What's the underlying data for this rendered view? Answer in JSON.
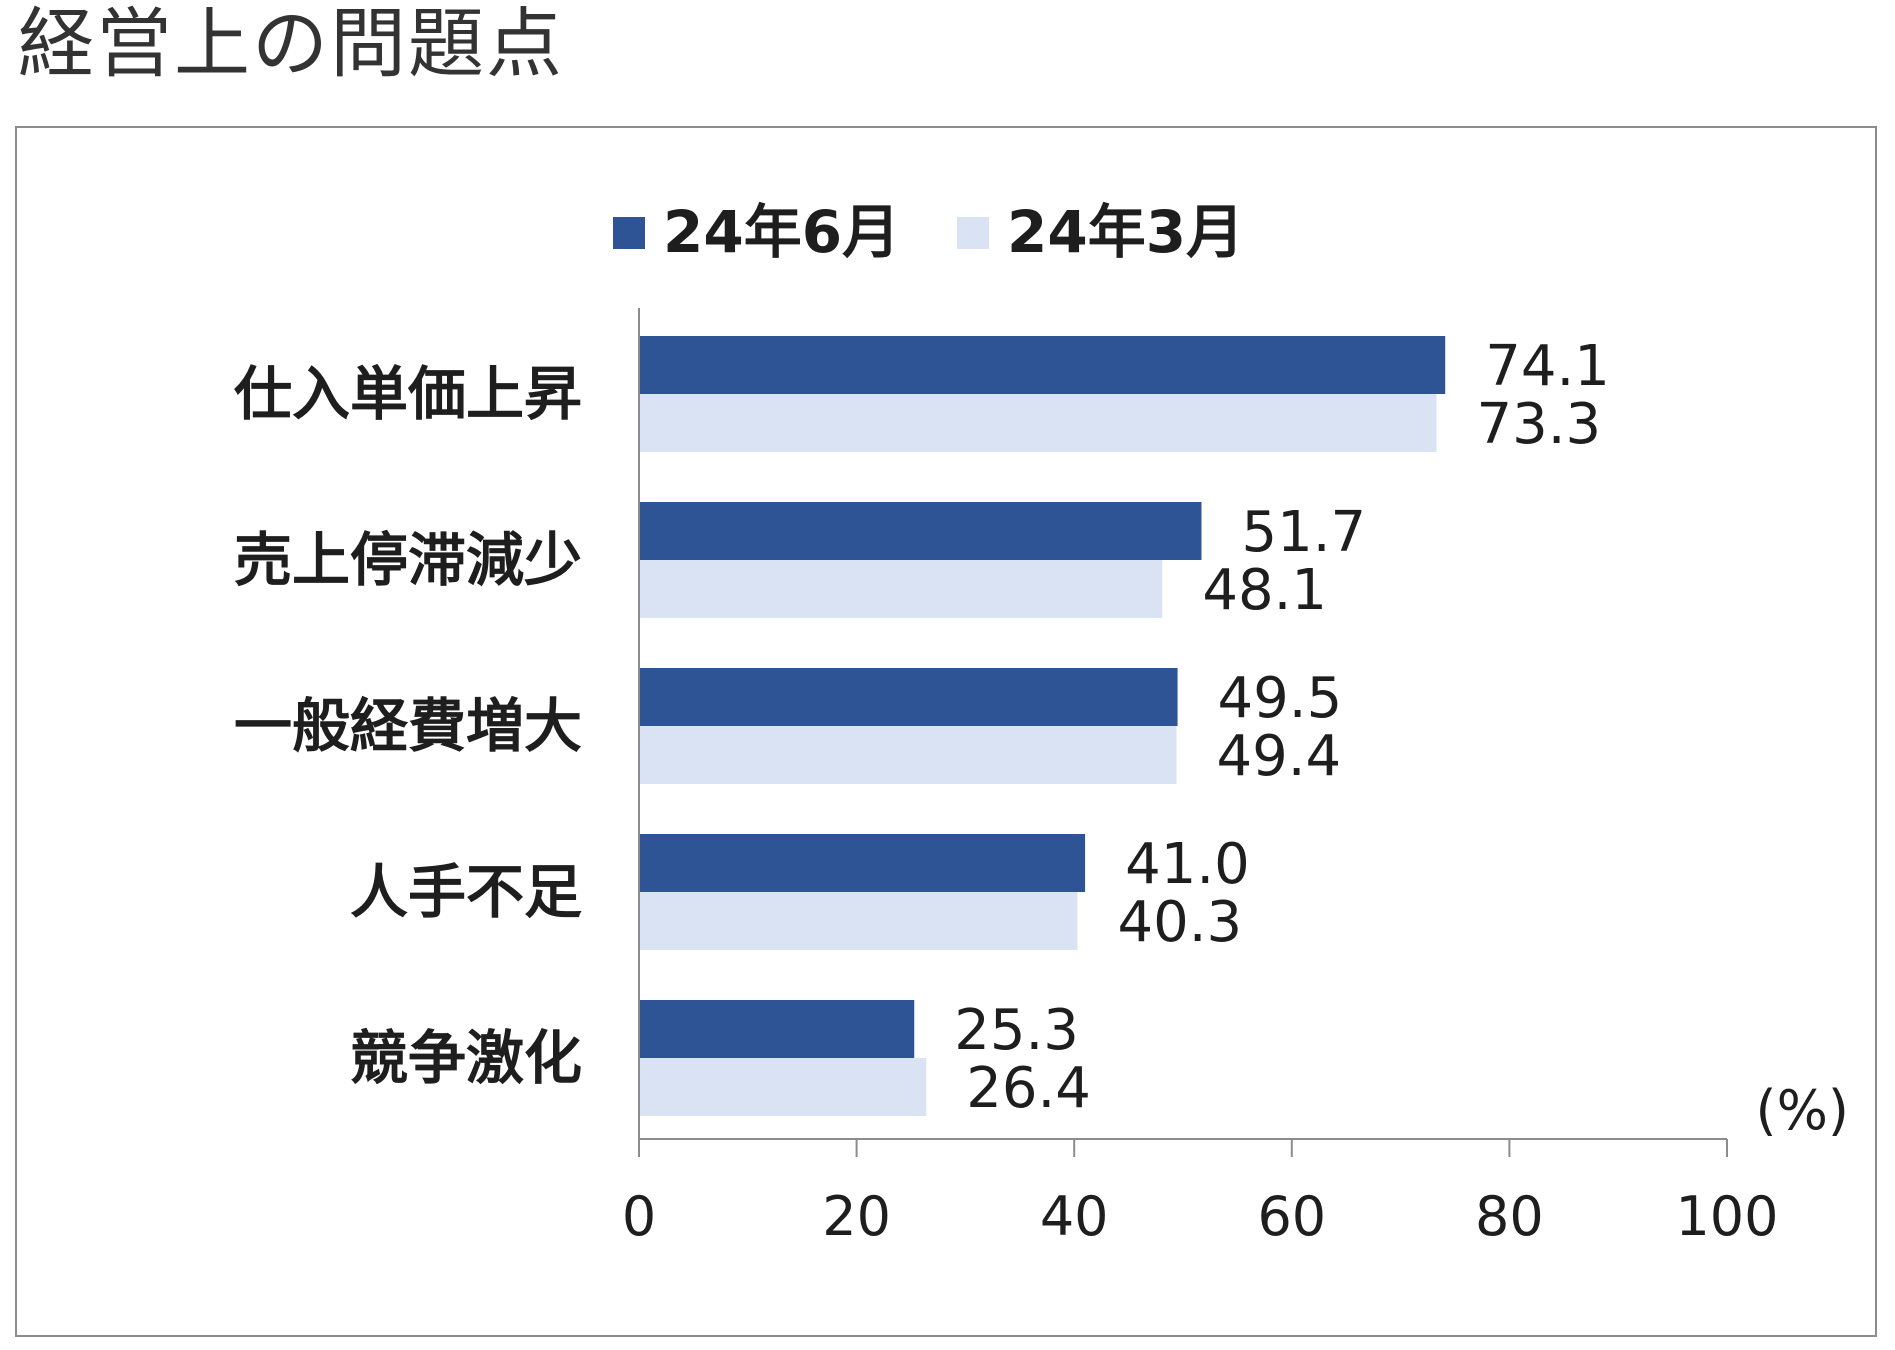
{
  "title": "経営上の問題点",
  "chart_data": {
    "type": "bar",
    "orientation": "horizontal",
    "categories": [
      "仕入単価上昇",
      "売上停滞減少",
      "一般経費増大",
      "人手不足",
      "競争激化"
    ],
    "series": [
      {
        "name": "24年6月",
        "color": "#2f5496",
        "values": [
          74.1,
          51.7,
          49.5,
          41.0,
          25.3
        ],
        "labels": [
          "74.1",
          "51.7",
          "49.5",
          "41.0",
          "25.3"
        ]
      },
      {
        "name": "24年3月",
        "color": "#dae3f3",
        "values": [
          73.3,
          48.1,
          49.4,
          40.3,
          26.4
        ],
        "labels": [
          "73.3",
          "48.1",
          "49.4",
          "40.3",
          "26.4"
        ]
      }
    ],
    "xlim": [
      0,
      100
    ],
    "xticks": [
      "0",
      "20",
      "40",
      "60",
      "80",
      "100"
    ],
    "unit": "(%)",
    "legend": "top",
    "grid": false
  }
}
